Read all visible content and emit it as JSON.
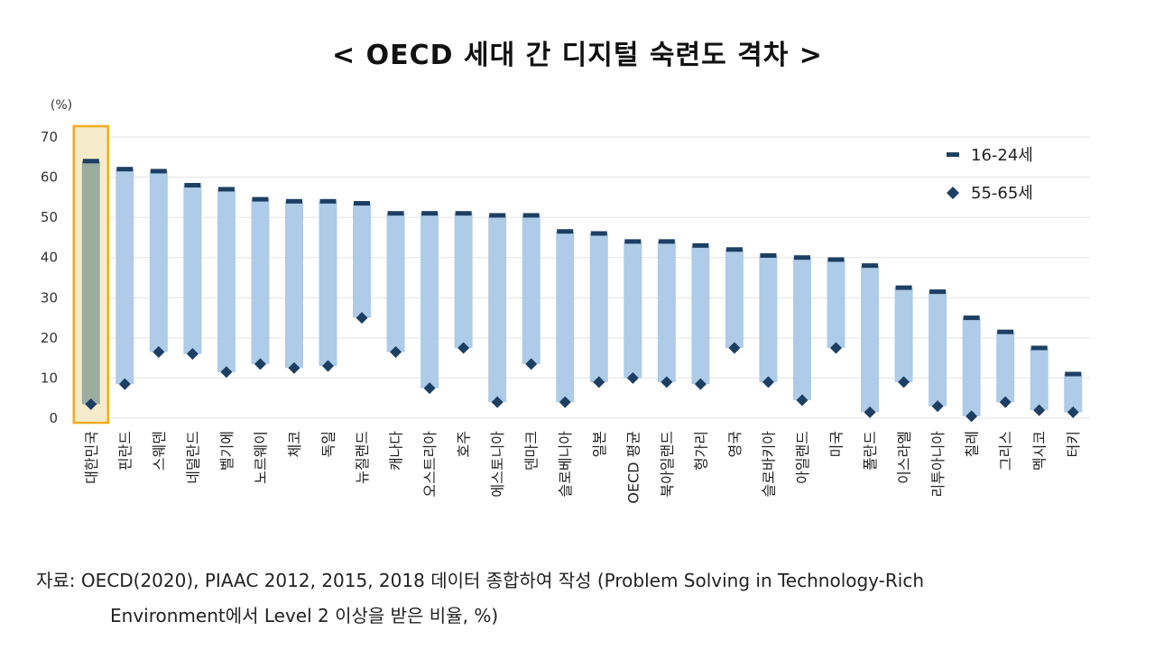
{
  "chart_data": {
    "type": "bar",
    "title": "< OECD 세대 간 디지털 숙련도 격차 >",
    "y_unit": "(%)",
    "ylim": [
      0,
      70
    ],
    "yticks": [
      0,
      10,
      20,
      30,
      40,
      50,
      60,
      70
    ],
    "grid": true,
    "legend_position": "top-right",
    "categories": [
      "대한민국",
      "핀란드",
      "스웨덴",
      "네덜란드",
      "벨기에",
      "노르웨이",
      "체코",
      "독일",
      "뉴질랜드",
      "캐나다",
      "오스트리아",
      "호주",
      "에스토니아",
      "덴마크",
      "슬로베니아",
      "일본",
      "OECD 평균",
      "북아일랜드",
      "헝가리",
      "영국",
      "슬로바키아",
      "아일랜드",
      "미국",
      "폴란드",
      "이스라엘",
      "리투아니아",
      "칠레",
      "그리스",
      "멕시코",
      "터키"
    ],
    "highlight_category": "대한민국",
    "series": [
      {
        "name": "16-24세",
        "values": [
          64,
          62,
          61.5,
          58,
          57,
          54.5,
          54,
          54,
          53.5,
          51,
          51,
          51,
          50.5,
          50.5,
          46.5,
          46,
          44,
          44,
          43,
          42,
          40.5,
          40,
          39.5,
          38,
          32.5,
          31.5,
          25,
          21.5,
          17.5,
          11
        ]
      },
      {
        "name": "55-65세",
        "values": [
          3.5,
          8.5,
          16.5,
          16,
          11.5,
          13.5,
          12.5,
          13,
          25,
          16.5,
          7.5,
          17.5,
          4,
          13.5,
          4,
          9,
          10,
          9,
          8.5,
          17.5,
          9,
          4.5,
          17.5,
          1.5,
          9,
          3,
          0.5,
          4,
          2,
          1.5
        ]
      }
    ],
    "colors": {
      "bar": "#aecbe8",
      "marker": "#1d3f63",
      "highlight_fill": "#f6eccb",
      "highlight_border": "#f0ad1c",
      "highlight_bar": "#9aaea0",
      "grid": "#e3e3e3"
    }
  },
  "source": {
    "line1": "자료: OECD(2020), PIAAC 2012, 2015, 2018 데이터 종합하여 작성 (Problem Solving in Technology-Rich",
    "line2": "Environment에서 Level 2 이상을 받은 비율, %)"
  }
}
